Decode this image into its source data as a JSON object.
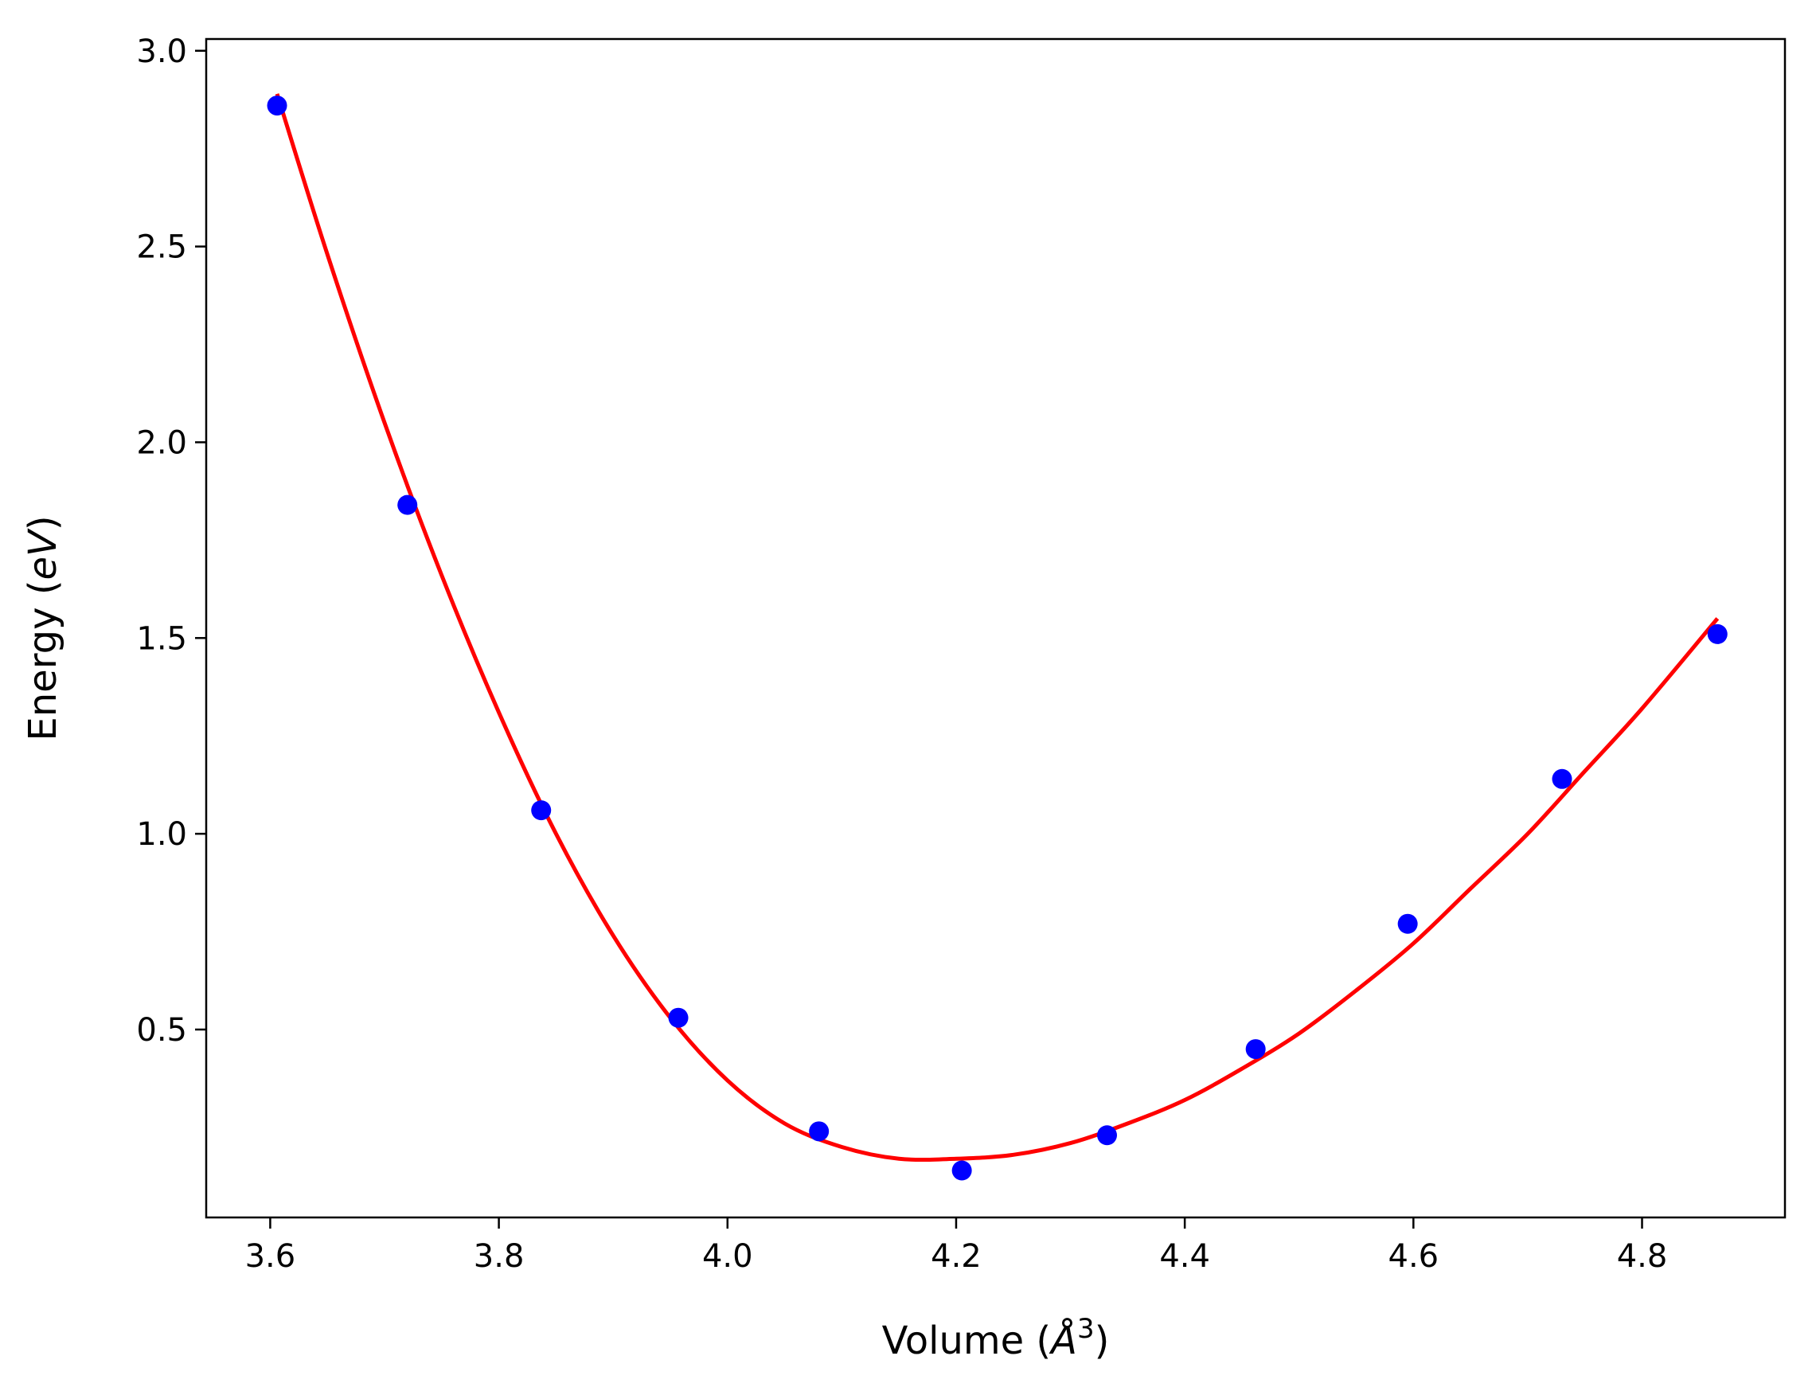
{
  "chart_data": {
    "type": "scatter",
    "title": "",
    "xlabel": {
      "prefix": "Volume (",
      "unit": "Å",
      "power": "3",
      "suffix": ")"
    },
    "ylabel": {
      "prefix": "Energy (",
      "unit": "eV",
      "suffix": ")"
    },
    "xlim": [
      3.544,
      4.925
    ],
    "ylim": [
      0.02,
      3.03
    ],
    "x_ticks": [
      {
        "value": 3.6,
        "label": "3.6"
      },
      {
        "value": 3.8,
        "label": "3.8"
      },
      {
        "value": 4.0,
        "label": "4.0"
      },
      {
        "value": 4.2,
        "label": "4.2"
      },
      {
        "value": 4.4,
        "label": "4.4"
      },
      {
        "value": 4.6,
        "label": "4.6"
      },
      {
        "value": 4.8,
        "label": "4.8"
      }
    ],
    "y_ticks": [
      {
        "value": 0.5,
        "label": "0.5"
      },
      {
        "value": 1.0,
        "label": "1.0"
      },
      {
        "value": 1.5,
        "label": "1.5"
      },
      {
        "value": 2.0,
        "label": "2.0"
      },
      {
        "value": 2.5,
        "label": "2.5"
      },
      {
        "value": 3.0,
        "label": "3.0"
      }
    ],
    "grid": false,
    "legend": "none",
    "series": [
      {
        "kind": "points",
        "color": "#0000ff",
        "x": [
          3.606,
          3.72,
          3.837,
          3.957,
          4.08,
          4.205,
          4.332,
          4.462,
          4.595,
          4.73,
          4.866
        ],
        "y": [
          2.86,
          1.84,
          1.06,
          0.53,
          0.24,
          0.14,
          0.23,
          0.45,
          0.77,
          1.14,
          1.51
        ]
      },
      {
        "kind": "fit-line",
        "color": "#ff0000",
        "x": [
          3.606,
          3.65,
          3.7,
          3.75,
          3.8,
          3.85,
          3.9,
          3.95,
          4.0,
          4.05,
          4.1,
          4.15,
          4.2,
          4.25,
          4.3,
          4.35,
          4.4,
          4.45,
          4.5,
          4.55,
          4.6,
          4.65,
          4.7,
          4.75,
          4.8,
          4.866
        ],
        "y": [
          2.89,
          2.48,
          2.05,
          1.66,
          1.31,
          1.0,
          0.74,
          0.53,
          0.37,
          0.26,
          0.2,
          0.17,
          0.17,
          0.18,
          0.21,
          0.26,
          0.32,
          0.4,
          0.49,
          0.6,
          0.72,
          0.86,
          1.0,
          1.16,
          1.32,
          1.55
        ]
      }
    ]
  }
}
